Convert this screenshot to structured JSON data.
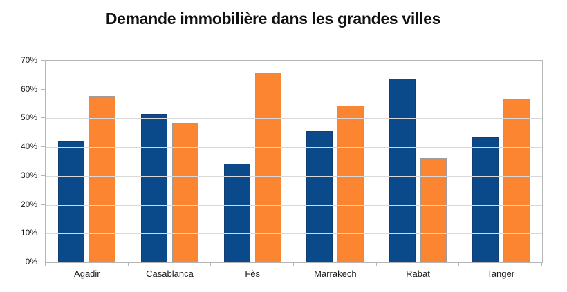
{
  "chart_data": {
    "type": "bar",
    "title": "Demande immobilière dans les grandes villes",
    "categories": [
      "Agadir",
      "Casablanca",
      "Fès",
      "Marrakech",
      "Rabat",
      "Tanger"
    ],
    "series": [
      {
        "name": "series-blue",
        "color": "#0B4A8A",
        "border_color": "#123E72",
        "values": [
          42.3,
          51.6,
          34.2,
          45.5,
          63.8,
          43.4
        ]
      },
      {
        "name": "series-orange",
        "color": "#FC8532",
        "border_color": "#9C9C9C",
        "values": [
          57.7,
          48.4,
          65.8,
          54.5,
          36.2,
          56.5
        ]
      }
    ],
    "xlabel": "",
    "ylabel": "",
    "ylim": [
      0,
      70
    ],
    "ytick_step": 10,
    "ytick_labels": [
      "0%",
      "10%",
      "20%",
      "30%",
      "40%",
      "50%",
      "60%",
      "70%"
    ],
    "grid": true,
    "legend_position": "none",
    "grid_color": "#d9d9d9",
    "axis_color": "#b5b5b5",
    "text_color": "#1a1a1a"
  }
}
